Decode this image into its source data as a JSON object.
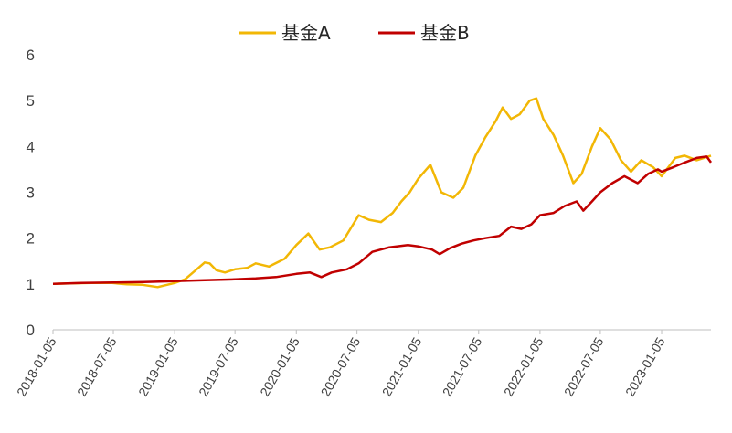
{
  "chart_data": {
    "type": "line",
    "title": "",
    "xlabel": "",
    "ylabel": "",
    "ylim": [
      0,
      6
    ],
    "y_ticks": [
      "0",
      "1",
      "2",
      "3",
      "4",
      "5",
      "6"
    ],
    "x_ticks": [
      "2018-01-05",
      "2018-07-05",
      "2019-01-05",
      "2019-07-05",
      "2020-01-05",
      "2020-07-05",
      "2021-01-05",
      "2021-07-05",
      "2022-01-05",
      "2022-07-05",
      "2023-01-05"
    ],
    "x_range": [
      "2018-01-05",
      "2023-06-02"
    ],
    "grid": false,
    "legend_position": "top",
    "series": [
      {
        "name": "基金A",
        "color": "#F2B705",
        "points": [
          [
            "2018-01-05",
            1.0
          ],
          [
            "2018-03-01",
            1.01
          ],
          [
            "2018-05-01",
            1.02
          ],
          [
            "2018-07-01",
            1.02
          ],
          [
            "2018-08-15",
            0.99
          ],
          [
            "2018-10-01",
            0.98
          ],
          [
            "2018-11-15",
            0.93
          ],
          [
            "2019-01-05",
            1.02
          ],
          [
            "2019-02-05",
            1.1
          ],
          [
            "2019-03-01",
            1.25
          ],
          [
            "2019-04-05",
            1.47
          ],
          [
            "2019-04-20",
            1.45
          ],
          [
            "2019-05-10",
            1.3
          ],
          [
            "2019-06-05",
            1.25
          ],
          [
            "2019-07-05",
            1.32
          ],
          [
            "2019-08-10",
            1.35
          ],
          [
            "2019-09-05",
            1.45
          ],
          [
            "2019-10-15",
            1.38
          ],
          [
            "2019-12-01",
            1.55
          ],
          [
            "2020-01-05",
            1.85
          ],
          [
            "2020-02-10",
            2.1
          ],
          [
            "2020-03-15",
            1.75
          ],
          [
            "2020-04-15",
            1.8
          ],
          [
            "2020-05-25",
            1.95
          ],
          [
            "2020-07-10",
            2.5
          ],
          [
            "2020-08-10",
            2.4
          ],
          [
            "2020-09-15",
            2.35
          ],
          [
            "2020-10-20",
            2.55
          ],
          [
            "2020-11-15",
            2.8
          ],
          [
            "2020-12-10",
            3.0
          ],
          [
            "2021-01-05",
            3.3
          ],
          [
            "2021-02-10",
            3.6
          ],
          [
            "2021-03-15",
            3.0
          ],
          [
            "2021-04-20",
            2.88
          ],
          [
            "2021-05-20",
            3.1
          ],
          [
            "2021-06-25",
            3.8
          ],
          [
            "2021-07-25",
            4.2
          ],
          [
            "2021-08-25",
            4.55
          ],
          [
            "2021-09-15",
            4.85
          ],
          [
            "2021-10-10",
            4.6
          ],
          [
            "2021-11-05",
            4.7
          ],
          [
            "2021-12-05",
            5.0
          ],
          [
            "2021-12-25",
            5.05
          ],
          [
            "2022-01-15",
            4.6
          ],
          [
            "2022-02-15",
            4.25
          ],
          [
            "2022-03-15",
            3.8
          ],
          [
            "2022-04-15",
            3.2
          ],
          [
            "2022-05-10",
            3.4
          ],
          [
            "2022-06-10",
            4.0
          ],
          [
            "2022-07-05",
            4.4
          ],
          [
            "2022-08-05",
            4.15
          ],
          [
            "2022-09-05",
            3.7
          ],
          [
            "2022-10-05",
            3.45
          ],
          [
            "2022-11-05",
            3.7
          ],
          [
            "2022-12-10",
            3.55
          ],
          [
            "2023-01-05",
            3.35
          ],
          [
            "2023-02-15",
            3.75
          ],
          [
            "2023-03-15",
            3.8
          ],
          [
            "2023-04-20",
            3.7
          ],
          [
            "2023-06-02",
            3.8
          ]
        ]
      },
      {
        "name": "基金B",
        "color": "#C00000",
        "points": [
          [
            "2018-01-05",
            1.0
          ],
          [
            "2018-04-01",
            1.02
          ],
          [
            "2018-07-05",
            1.03
          ],
          [
            "2018-10-05",
            1.04
          ],
          [
            "2019-01-05",
            1.06
          ],
          [
            "2019-04-05",
            1.08
          ],
          [
            "2019-07-05",
            1.1
          ],
          [
            "2019-09-05",
            1.12
          ],
          [
            "2019-11-05",
            1.15
          ],
          [
            "2020-01-05",
            1.22
          ],
          [
            "2020-02-15",
            1.25
          ],
          [
            "2020-03-20",
            1.15
          ],
          [
            "2020-04-20",
            1.25
          ],
          [
            "2020-06-05",
            1.32
          ],
          [
            "2020-07-10",
            1.45
          ],
          [
            "2020-08-20",
            1.7
          ],
          [
            "2020-10-10",
            1.8
          ],
          [
            "2020-12-05",
            1.85
          ],
          [
            "2021-01-05",
            1.82
          ],
          [
            "2021-02-15",
            1.75
          ],
          [
            "2021-03-10",
            1.65
          ],
          [
            "2021-04-10",
            1.78
          ],
          [
            "2021-05-15",
            1.88
          ],
          [
            "2021-06-20",
            1.95
          ],
          [
            "2021-07-25",
            2.0
          ],
          [
            "2021-09-05",
            2.05
          ],
          [
            "2021-10-10",
            2.25
          ],
          [
            "2021-11-10",
            2.2
          ],
          [
            "2021-12-10",
            2.3
          ],
          [
            "2022-01-05",
            2.5
          ],
          [
            "2022-02-15",
            2.55
          ],
          [
            "2022-03-20",
            2.7
          ],
          [
            "2022-04-25",
            2.8
          ],
          [
            "2022-05-15",
            2.6
          ],
          [
            "2022-06-10",
            2.8
          ],
          [
            "2022-07-05",
            3.0
          ],
          [
            "2022-08-10",
            3.2
          ],
          [
            "2022-09-15",
            3.35
          ],
          [
            "2022-10-25",
            3.2
          ],
          [
            "2022-11-25",
            3.4
          ],
          [
            "2022-12-25",
            3.5
          ],
          [
            "2023-01-05",
            3.45
          ],
          [
            "2023-02-10",
            3.55
          ],
          [
            "2023-03-15",
            3.65
          ],
          [
            "2023-04-20",
            3.75
          ],
          [
            "2023-05-20",
            3.78
          ],
          [
            "2023-06-02",
            3.65
          ]
        ]
      }
    ]
  }
}
